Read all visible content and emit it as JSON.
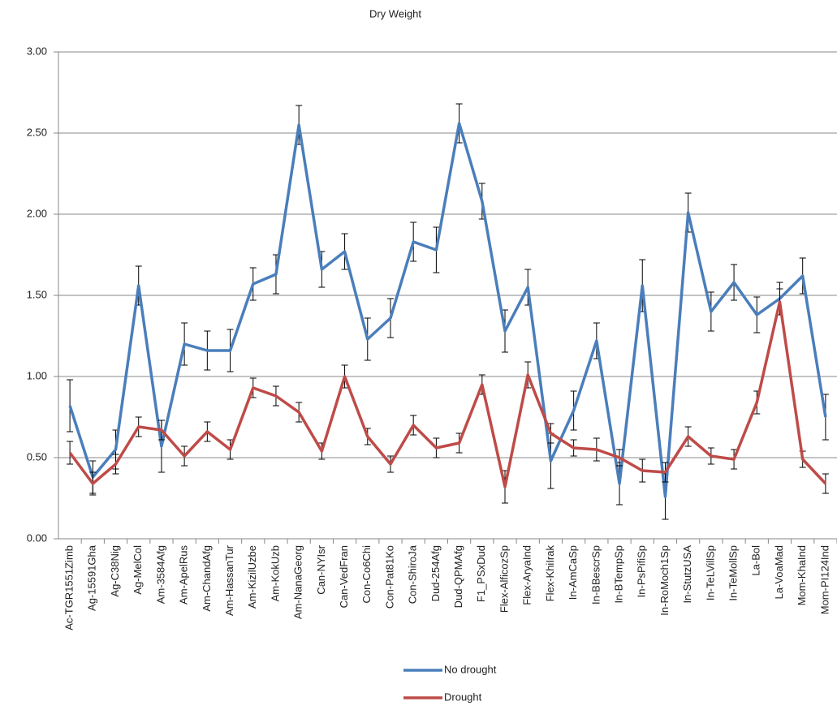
{
  "chart_data": {
    "type": "line",
    "title": "Dry Weight",
    "categories": [
      "Ac-TGR1551Zimb",
      "Ag-15591Gha",
      "Ag-C38Nig",
      "Ag-MelCol",
      "Am-3584Afg",
      "Am-ApelRus",
      "Am-ChandAfg",
      "Am-HassanTur",
      "Am-KizilUzbe",
      "Am-KokUzb",
      "Am-NanaGeorg",
      "Can-NYIsr",
      "Can-VedFran",
      "Con-Co6Chi",
      "Con-Pat81Ko",
      "Con-ShiroJa",
      "Dud-254Afg",
      "Dud-QPMAfg",
      "F1_PSxDud",
      "Flex-AlficozSp",
      "Flex-AryaInd",
      "Flex-KhiIrak",
      "In-AmCaSp",
      "In-BBescrSp",
      "In-BTempSp",
      "In-PsPifiSp",
      "In-RoMoch1Sp",
      "In-StutzUSA",
      "In-TeLVillSp",
      "In-TeMollSp",
      "La-Bol",
      "La-VoaMad",
      "Mom-KhaInd",
      "Mom-PI124Ind"
    ],
    "series": [
      {
        "name": "No drought",
        "color": "#4a7ebb",
        "values": [
          0.82,
          0.38,
          0.55,
          1.56,
          0.57,
          1.2,
          1.16,
          1.16,
          1.57,
          1.63,
          2.55,
          1.66,
          1.77,
          1.23,
          1.36,
          1.83,
          1.78,
          2.56,
          2.08,
          1.28,
          1.55,
          0.48,
          0.79,
          1.22,
          0.34,
          1.56,
          0.26,
          2.01,
          1.4,
          1.58,
          1.38,
          1.48,
          1.62,
          0.75
        ],
        "errors": [
          0.16,
          0.1,
          0.12,
          0.12,
          0.16,
          0.13,
          0.12,
          0.13,
          0.1,
          0.12,
          0.12,
          0.11,
          0.11,
          0.13,
          0.12,
          0.12,
          0.14,
          0.12,
          0.11,
          0.13,
          0.11,
          0.17,
          0.12,
          0.11,
          0.13,
          0.16,
          0.14,
          0.12,
          0.12,
          0.11,
          0.11,
          0.1,
          0.11,
          0.14
        ]
      },
      {
        "name": "Drought",
        "color": "#be4b48",
        "values": [
          0.53,
          0.34,
          0.46,
          0.69,
          0.67,
          0.51,
          0.66,
          0.55,
          0.93,
          0.88,
          0.78,
          0.54,
          1.0,
          0.63,
          0.46,
          0.7,
          0.56,
          0.59,
          0.95,
          0.32,
          1.01,
          0.65,
          0.56,
          0.55,
          0.5,
          0.42,
          0.41,
          0.63,
          0.51,
          0.49,
          0.84,
          1.46,
          0.49,
          0.34
        ],
        "errors": [
          0.07,
          0.07,
          0.06,
          0.06,
          0.06,
          0.06,
          0.06,
          0.06,
          0.06,
          0.06,
          0.06,
          0.05,
          0.07,
          0.05,
          0.05,
          0.06,
          0.06,
          0.06,
          0.06,
          0.1,
          0.08,
          0.06,
          0.05,
          0.07,
          0.05,
          0.07,
          0.06,
          0.06,
          0.05,
          0.06,
          0.07,
          0.08,
          0.05,
          0.06
        ]
      }
    ],
    "ylim": [
      0,
      3
    ],
    "yticks": [
      {
        "value": 0,
        "label": "0.00"
      },
      {
        "value": 0.5,
        "label": "0.50"
      },
      {
        "value": 1,
        "label": "1.00"
      },
      {
        "value": 1.5,
        "label": "1.50"
      },
      {
        "value": 2,
        "label": "2.00"
      },
      {
        "value": 2.5,
        "label": "2.50"
      },
      {
        "value": 3,
        "label": "3.00"
      }
    ],
    "grid": true,
    "legend": "bottom"
  }
}
